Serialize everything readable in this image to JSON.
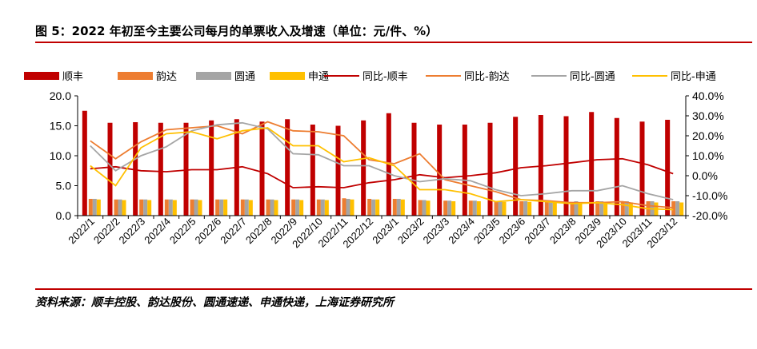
{
  "header": {
    "title": "图 5：2022 年初至今主要公司每月的单票收入及增速（单位：元/件、%）"
  },
  "footer": {
    "source": "资料来源：顺丰控股、韵达股份、圆通速递、申通快递，上海证券研究所"
  },
  "colors": {
    "rule": "#c00000",
    "sf": "#c00000",
    "yunda": "#ed7d31",
    "yto": "#a5a5a5",
    "sto": "#ffc000"
  },
  "chart_data": {
    "type": "bar",
    "categories": [
      "2022/1",
      "2022/2",
      "2022/3",
      "2022/4",
      "2022/5",
      "2022/6",
      "2022/7",
      "2022/8",
      "2022/9",
      "2022/10",
      "2022/11",
      "2022/12",
      "2023/1",
      "2023/2",
      "2023/3",
      "2023/4",
      "2023/5",
      "2023/6",
      "2023/7",
      "2023/8",
      "2023/9",
      "2023/10",
      "2023/11",
      "2023/12"
    ],
    "y_left": {
      "ylim": [
        0,
        20
      ],
      "ticks": [
        "0.0",
        "5.0",
        "10.0",
        "15.0",
        "20.0"
      ]
    },
    "y_right": {
      "ylim": [
        -20,
        40
      ],
      "ticks": [
        "-20.0%",
        "-10.0%",
        "0.0%",
        "10.0%",
        "20.0%",
        "30.0%",
        "40.0%"
      ]
    },
    "bar_series": [
      {
        "name": "顺丰",
        "color": "#c00000",
        "values": [
          17.5,
          15.5,
          15.6,
          15.5,
          15.5,
          15.9,
          16.1,
          15.7,
          16.1,
          15.2,
          15.0,
          15.9,
          17.1,
          15.5,
          15.2,
          15.2,
          15.5,
          16.5,
          16.8,
          16.6,
          17.3,
          16.3,
          15.7,
          16.0
        ]
      },
      {
        "name": "韵达",
        "color": "#ed7d31",
        "values": [
          2.8,
          2.7,
          2.7,
          2.7,
          2.7,
          2.7,
          2.7,
          2.7,
          2.7,
          2.7,
          2.9,
          2.8,
          2.8,
          2.6,
          2.5,
          2.5,
          2.4,
          2.4,
          2.4,
          2.3,
          2.4,
          2.4,
          2.4,
          2.4
        ]
      },
      {
        "name": "圆通",
        "color": "#a5a5a5",
        "values": [
          2.8,
          2.7,
          2.7,
          2.7,
          2.7,
          2.7,
          2.7,
          2.7,
          2.7,
          2.7,
          2.8,
          2.7,
          2.8,
          2.6,
          2.5,
          2.5,
          2.4,
          2.4,
          2.4,
          2.4,
          2.4,
          2.4,
          2.4,
          2.4
        ]
      },
      {
        "name": "申通",
        "color": "#ffc000",
        "values": [
          2.7,
          2.6,
          2.6,
          2.6,
          2.6,
          2.7,
          2.6,
          2.6,
          2.6,
          2.6,
          2.7,
          2.7,
          2.7,
          2.5,
          2.4,
          2.4,
          2.3,
          2.3,
          2.3,
          2.2,
          2.2,
          2.2,
          2.2,
          2.2
        ]
      }
    ],
    "line_series": [
      {
        "name": "同比-顺丰",
        "color": "#c00000",
        "values": [
          3.5,
          4.5,
          2.5,
          2.0,
          3.0,
          3.0,
          4.5,
          1.0,
          -6.0,
          -5.5,
          -6.0,
          -3.5,
          -2.0,
          0.5,
          -1.0,
          0.0,
          1.5,
          4.0,
          5.0,
          6.5,
          8.0,
          8.5,
          5.5,
          1.0
        ]
      },
      {
        "name": "同比-韵达",
        "color": "#ed7d31",
        "values": [
          17.5,
          8.5,
          17.0,
          23.0,
          24.0,
          25.0,
          21.0,
          27.0,
          22.5,
          22.0,
          20.0,
          8.0,
          6.0,
          11.0,
          -2.0,
          -5.0,
          -8.0,
          -12.0,
          -12.5,
          -13.5,
          -13.5,
          -13.0,
          -15.0,
          -16.0
        ]
      },
      {
        "name": "同比-圆通",
        "color": "#a5a5a5",
        "values": [
          15.0,
          2.5,
          10.0,
          14.5,
          22.5,
          25.5,
          26.5,
          23.5,
          11.0,
          10.5,
          5.0,
          5.0,
          0.0,
          -3.0,
          -1.5,
          -2.5,
          -7.0,
          -10.0,
          -9.0,
          -7.5,
          -7.5,
          -5.0,
          -9.0,
          -12.0
        ]
      },
      {
        "name": "同比-申通",
        "color": "#ffc000",
        "values": [
          5.0,
          -5.0,
          14.0,
          21.0,
          22.0,
          18.5,
          22.5,
          24.0,
          15.0,
          15.0,
          7.0,
          9.0,
          5.0,
          -7.0,
          -7.0,
          -9.0,
          -13.0,
          -12.0,
          -13.0,
          -14.0,
          -13.5,
          -14.5,
          -16.5,
          -17.0
        ]
      }
    ],
    "legend": [
      "顺丰",
      "韵达",
      "圆通",
      "申通",
      "同比-顺丰",
      "同比-韵达",
      "同比-圆通",
      "同比-申通"
    ],
    "legend_position": "top",
    "grid": false
  }
}
